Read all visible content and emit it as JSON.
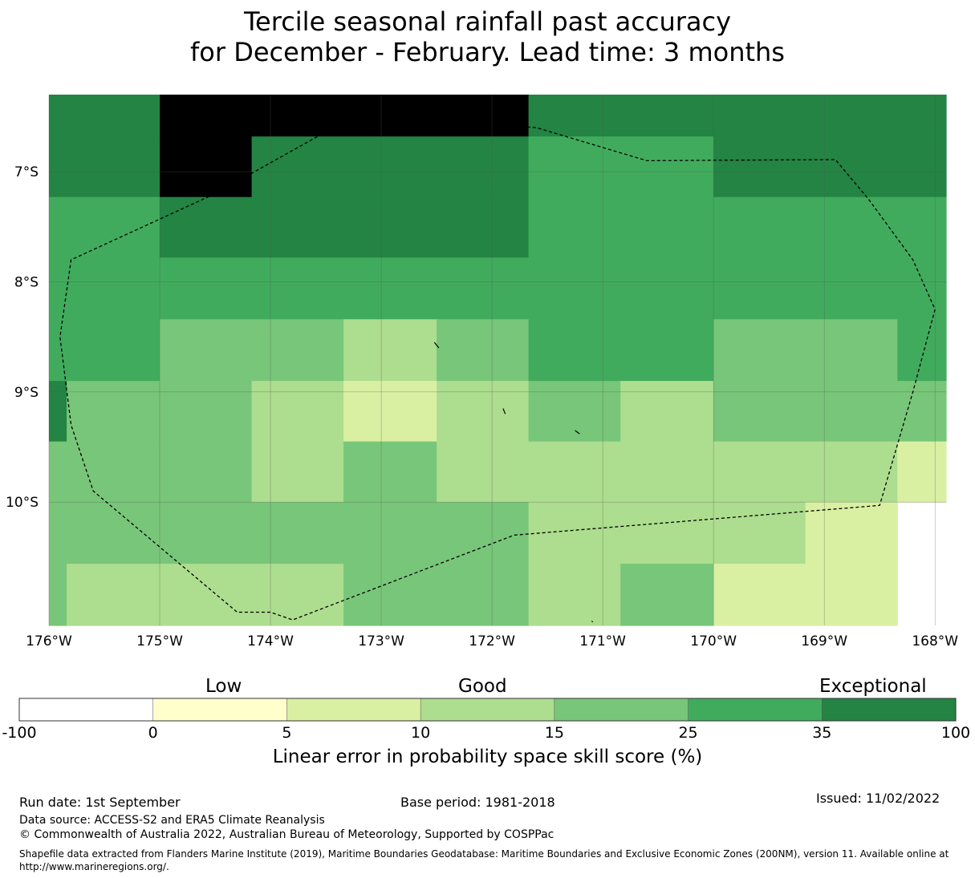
{
  "title": {
    "line1": "Tercile seasonal rainfall past accuracy",
    "line2": "for December - February. Lead time: 3 months"
  },
  "map": {
    "lon_range": [
      -176.0,
      -167.9
    ],
    "lat_range": [
      -11.12,
      -6.3
    ],
    "lon_ticks": [
      {
        "value": -176,
        "label": "176°W"
      },
      {
        "value": -175,
        "label": "175°W"
      },
      {
        "value": -174,
        "label": "174°W"
      },
      {
        "value": -173,
        "label": "173°W"
      },
      {
        "value": -172,
        "label": "172°W"
      },
      {
        "value": -171,
        "label": "171°W"
      },
      {
        "value": -170,
        "label": "170°W"
      },
      {
        "value": -169,
        "label": "169°W"
      },
      {
        "value": -168,
        "label": "168°W"
      }
    ],
    "lat_ticks": [
      {
        "value": -7,
        "label": "7°S"
      },
      {
        "value": -8,
        "label": "8°S"
      },
      {
        "value": -9,
        "label": "9°S"
      },
      {
        "value": -10,
        "label": "10°S"
      }
    ],
    "cells": [
      {
        "lon": [
          -176.0,
          -175.0
        ],
        "lat": [
          -6.3,
          -6.68
        ],
        "cls": 6
      },
      {
        "lon": [
          -175.0,
          -171.67
        ],
        "lat": [
          -6.3,
          -6.68
        ],
        "cls": 7
      },
      {
        "lon": [
          -171.67,
          -167.9
        ],
        "lat": [
          -6.3,
          -6.68
        ],
        "cls": 6
      },
      {
        "lon": [
          -176.0,
          -175.0
        ],
        "lat": [
          -6.68,
          -7.23
        ],
        "cls": 6
      },
      {
        "lon": [
          -175.0,
          -174.17
        ],
        "lat": [
          -6.68,
          -7.23
        ],
        "cls": 7
      },
      {
        "lon": [
          -174.17,
          -171.67
        ],
        "lat": [
          -6.68,
          -7.23
        ],
        "cls": 6
      },
      {
        "lon": [
          -171.67,
          -170.0
        ],
        "lat": [
          -6.68,
          -7.23
        ],
        "cls": 5
      },
      {
        "lon": [
          -170.0,
          -167.9
        ],
        "lat": [
          -6.68,
          -7.23
        ],
        "cls": 6
      },
      {
        "lon": [
          -176.0,
          -175.0
        ],
        "lat": [
          -7.23,
          -7.78
        ],
        "cls": 5
      },
      {
        "lon": [
          -175.0,
          -171.67
        ],
        "lat": [
          -7.23,
          -7.78
        ],
        "cls": 6
      },
      {
        "lon": [
          -171.67,
          -167.9
        ],
        "lat": [
          -7.23,
          -7.78
        ],
        "cls": 5
      },
      {
        "lon": [
          -176.0,
          -167.9
        ],
        "lat": [
          -7.78,
          -8.34
        ],
        "cls": 5
      },
      {
        "lon": [
          -176.0,
          -175.0
        ],
        "lat": [
          -8.34,
          -8.9
        ],
        "cls": 5
      },
      {
        "lon": [
          -175.0,
          -173.34
        ],
        "lat": [
          -8.34,
          -8.9
        ],
        "cls": 4
      },
      {
        "lon": [
          -173.34,
          -172.5
        ],
        "lat": [
          -8.34,
          -8.9
        ],
        "cls": 3
      },
      {
        "lon": [
          -172.5,
          -171.67
        ],
        "lat": [
          -8.34,
          -8.9
        ],
        "cls": 4
      },
      {
        "lon": [
          -171.67,
          -170.0
        ],
        "lat": [
          -8.34,
          -8.9
        ],
        "cls": 5
      },
      {
        "lon": [
          -170.0,
          -168.34
        ],
        "lat": [
          -8.34,
          -8.9
        ],
        "cls": 4
      },
      {
        "lon": [
          -168.34,
          -167.9
        ],
        "lat": [
          -8.34,
          -8.9
        ],
        "cls": 5
      },
      {
        "lon": [
          -176.0,
          -175.84
        ],
        "lat": [
          -8.9,
          -9.45
        ],
        "cls": 6
      },
      {
        "lon": [
          -175.84,
          -174.17
        ],
        "lat": [
          -8.9,
          -9.45
        ],
        "cls": 4
      },
      {
        "lon": [
          -174.17,
          -173.34
        ],
        "lat": [
          -8.9,
          -9.45
        ],
        "cls": 3
      },
      {
        "lon": [
          -173.34,
          -172.5
        ],
        "lat": [
          -8.9,
          -9.45
        ],
        "cls": 2
      },
      {
        "lon": [
          -172.5,
          -171.67
        ],
        "lat": [
          -8.9,
          -9.45
        ],
        "cls": 3
      },
      {
        "lon": [
          -171.67,
          -170.84
        ],
        "lat": [
          -8.9,
          -9.45
        ],
        "cls": 4
      },
      {
        "lon": [
          -170.84,
          -170.0
        ],
        "lat": [
          -8.9,
          -9.45
        ],
        "cls": 3
      },
      {
        "lon": [
          -170.0,
          -167.9
        ],
        "lat": [
          -8.9,
          -9.45
        ],
        "cls": 4
      },
      {
        "lon": [
          -176.0,
          -174.17
        ],
        "lat": [
          -9.45,
          -10.0
        ],
        "cls": 4
      },
      {
        "lon": [
          -174.17,
          -173.34
        ],
        "lat": [
          -9.45,
          -10.0
        ],
        "cls": 3
      },
      {
        "lon": [
          -173.34,
          -172.5
        ],
        "lat": [
          -9.45,
          -10.0
        ],
        "cls": 4
      },
      {
        "lon": [
          -172.5,
          -168.34
        ],
        "lat": [
          -9.45,
          -10.0
        ],
        "cls": 3
      },
      {
        "lon": [
          -168.34,
          -167.9
        ],
        "lat": [
          -9.45,
          -10.0
        ],
        "cls": 2
      },
      {
        "lon": [
          -176.0,
          -171.67
        ],
        "lat": [
          -10.0,
          -10.56
        ],
        "cls": 4
      },
      {
        "lon": [
          -171.67,
          -169.17
        ],
        "lat": [
          -10.0,
          -10.56
        ],
        "cls": 3
      },
      {
        "lon": [
          -169.17,
          -168.34
        ],
        "lat": [
          -10.0,
          -10.56
        ],
        "cls": 2
      },
      {
        "lon": [
          -176.0,
          -175.84
        ],
        "lat": [
          -10.56,
          -11.12
        ],
        "cls": 4
      },
      {
        "lon": [
          -175.84,
          -173.34
        ],
        "lat": [
          -10.56,
          -11.12
        ],
        "cls": 3
      },
      {
        "lon": [
          -173.34,
          -171.67
        ],
        "lat": [
          -10.56,
          -11.12
        ],
        "cls": 4
      },
      {
        "lon": [
          -171.67,
          -170.84
        ],
        "lat": [
          -10.56,
          -11.12
        ],
        "cls": 3
      },
      {
        "lon": [
          -170.84,
          -170.0
        ],
        "lat": [
          -10.56,
          -11.12
        ],
        "cls": 4
      },
      {
        "lon": [
          -170.0,
          -168.34
        ],
        "lat": [
          -10.56,
          -11.12
        ],
        "cls": 2
      }
    ],
    "eez_boundary": [
      [
        -173.2,
        -6.47
      ],
      [
        -171.6,
        -6.6
      ],
      [
        -170.6,
        -6.9
      ],
      [
        -168.9,
        -6.89
      ],
      [
        -168.6,
        -7.25
      ],
      [
        -168.2,
        -7.8
      ],
      [
        -168.0,
        -8.25
      ],
      [
        -168.2,
        -9.0
      ],
      [
        -168.5,
        -10.03
      ],
      [
        -171.8,
        -10.3
      ],
      [
        -173.8,
        -11.07
      ],
      [
        -174.0,
        -11.0
      ],
      [
        -174.3,
        -11.0
      ],
      [
        -175.6,
        -9.9
      ],
      [
        -175.8,
        -9.3
      ],
      [
        -175.9,
        -8.5
      ],
      [
        -175.8,
        -7.8
      ],
      [
        -174.5,
        -7.2
      ],
      [
        -173.2,
        -6.47
      ]
    ],
    "islands": [
      [
        [
          -172.52,
          -8.55
        ],
        [
          -172.48,
          -8.6
        ]
      ],
      [
        [
          -171.9,
          -9.15
        ],
        [
          -171.88,
          -9.2
        ]
      ],
      [
        [
          -171.25,
          -9.35
        ],
        [
          -171.21,
          -9.38
        ]
      ],
      [
        [
          -171.1,
          -11.08
        ],
        [
          -171.09,
          -11.09
        ]
      ]
    ]
  },
  "colorbar": {
    "categories": [
      {
        "label": "Low"
      },
      {
        "label": "Good"
      },
      {
        "label": "Exceptional"
      }
    ],
    "bins": [
      {
        "from": -100,
        "to": 0,
        "color": "#ffffff"
      },
      {
        "from": 0,
        "to": 5,
        "color": "#ffffcc"
      },
      {
        "from": 5,
        "to": 10,
        "color": "#d9f0a3"
      },
      {
        "from": 10,
        "to": 15,
        "color": "#addd8e"
      },
      {
        "from": 15,
        "to": 25,
        "color": "#78c679"
      },
      {
        "from": 25,
        "to": 35,
        "color": "#41ab5d"
      },
      {
        "from": 35,
        "to": 100,
        "color": "#238443"
      }
    ],
    "tick_labels": [
      "-100",
      "0",
      "5",
      "10",
      "15",
      "25",
      "35",
      "100"
    ],
    "axis_label": "Linear error in probability space skill score (%)"
  },
  "footer": {
    "run_date": "Run date: 1st September",
    "base_period": "Base period: 1981-2018",
    "issued": "Issued: 11/02/2022",
    "data_source": "Data source: ACCESS-S2 and ERA5 Climate Reanalysis",
    "copyright": "© Commonwealth of Australia 2022, Australian Bureau of Meteorology, Supported by COSPPac",
    "shapefile_note": "Shapefile data extracted from Flanders Marine Institute (2019), Maritime Boundaries Geodatabase: Maritime Boundaries and Exclusive Economic Zones (200NM), version 11. Available online at http://www.marineregions.org/."
  }
}
